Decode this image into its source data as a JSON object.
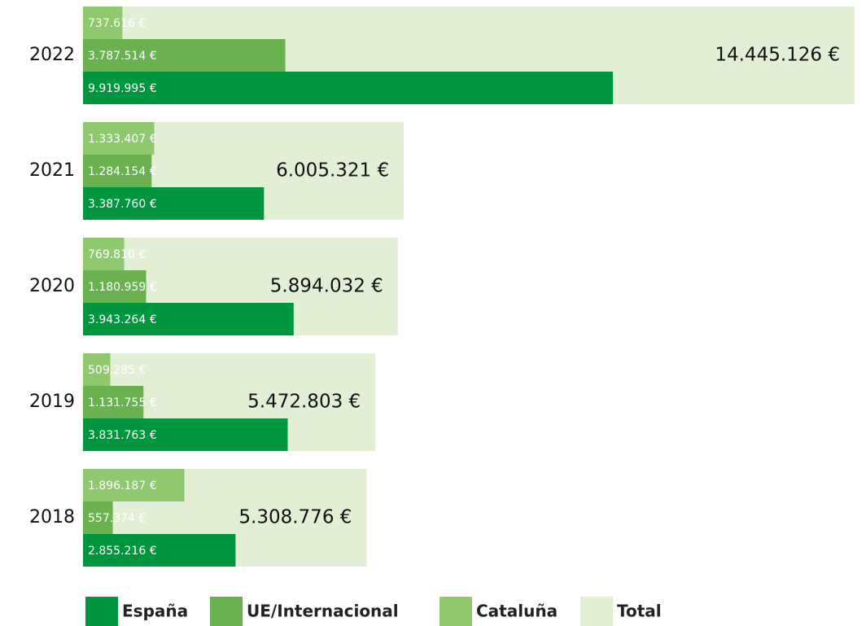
{
  "chart_data": {
    "type": "bar",
    "categories": [
      "2022",
      "2021",
      "2020",
      "2019",
      "2018"
    ],
    "series": [
      {
        "name": "España",
        "color": "#009640",
        "values": [
          9919995,
          3387760,
          3943264,
          3831763,
          2855216
        ],
        "value_labels": [
          "9.919.995 €",
          "3.387.760 €",
          "3.943.264 €",
          "3.831.763 €",
          "2.855.216 €"
        ]
      },
      {
        "name": "UE/Internacional",
        "color": "#69b24f",
        "values": [
          3787514,
          1284154,
          1180959,
          1131755,
          557374
        ],
        "value_labels": [
          "3.787.514 €",
          "1.284.154 €",
          "1.180.959 €",
          "1.131.755 €",
          "557.374 €"
        ]
      },
      {
        "name": "Cataluña",
        "color": "#8fc86f",
        "values": [
          737616,
          1333407,
          769810,
          509285,
          1896187
        ],
        "value_labels": [
          "737.616 €",
          "1.333.407 €",
          "769.810 €",
          "509.285 €",
          "1.896.187 €"
        ]
      },
      {
        "name": "Total",
        "color": "#e2efd4",
        "values": [
          14445126,
          6005321,
          5894032,
          5472803,
          5308776
        ],
        "value_labels": [
          "14.445.126 €",
          "6.005.321 €",
          "5.894.032 €",
          "5.472.803 €",
          "5.308.776 €"
        ]
      }
    ]
  }
}
